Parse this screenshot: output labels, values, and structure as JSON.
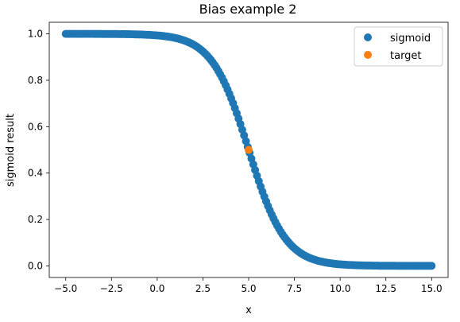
{
  "chart_data": {
    "type": "scatter",
    "title": "Bias example 2",
    "xlabel": "x",
    "ylabel": "sigmoid result",
    "xlim": [
      -5.9,
      15.9
    ],
    "ylim": [
      -0.05,
      1.05
    ],
    "xticks": [
      -5.0,
      -2.5,
      0.0,
      2.5,
      5.0,
      7.5,
      10.0,
      12.5,
      15.0
    ],
    "xtick_labels": [
      "−5.0",
      "−2.5",
      "0.0",
      "2.5",
      "5.0",
      "7.5",
      "10.0",
      "12.5",
      "15.0"
    ],
    "yticks": [
      0.0,
      0.2,
      0.4,
      0.6,
      0.8,
      1.0
    ],
    "ytick_labels": [
      "0.0",
      "0.2",
      "0.4",
      "0.6",
      "0.8",
      "1.0"
    ],
    "grid": false,
    "legend": "top-right",
    "series": [
      {
        "name": "sigmoid",
        "color": "#1f77b4",
        "function": "1 / (1 + exp(x - 5))",
        "x_range": [
          -5,
          15
        ],
        "n_points": 200
      },
      {
        "name": "target",
        "color": "#ff7f0e",
        "points": [
          [
            5,
            0.5
          ]
        ]
      }
    ]
  }
}
